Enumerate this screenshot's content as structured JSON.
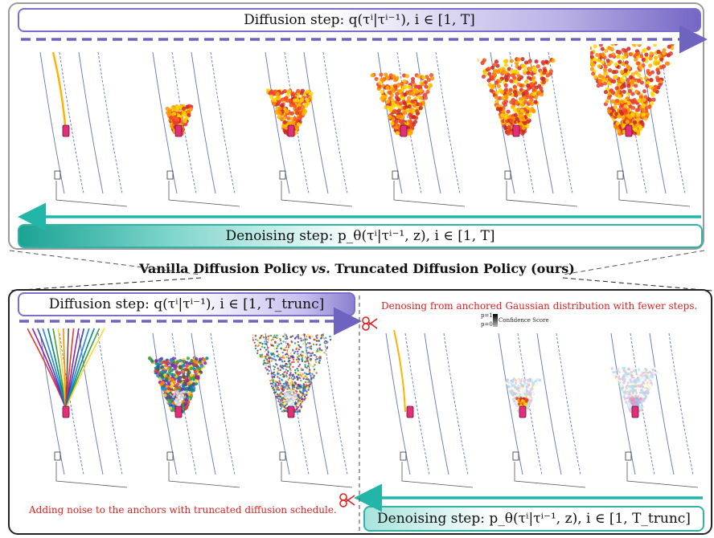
{
  "top": {
    "diffusion_label": "Diffusion step: q(τⁱ|τⁱ⁻¹), i ∈ [1, T]",
    "denoising_label": "Denoising step: p_θ(τⁱ|τⁱ⁻¹, z), i ∈ [1, T]"
  },
  "title": {
    "part1": "Vanilla Diffusion Policy ",
    "vs": "vs.",
    "part2": " Truncated Diffusion Policy (ours)"
  },
  "bottom": {
    "diffusion_label": "Diffusion step: q(τⁱ|τⁱ⁻¹), i ∈ [1, T_trunc]",
    "denoising_label": "Denoising step: p_θ(τⁱ|τⁱ⁻¹, z), i ∈ [1, T_trunc]",
    "note_right": "Denosing from anchored Gaussian distribution with fewer steps.",
    "note_left": "Adding noise to the anchors with truncated diffusion schedule.",
    "confidence_p1": "p=1",
    "confidence_p0": "p=0",
    "confidence_label": "Confidence Score"
  },
  "colors": {
    "diffusion_accent": "#6f63c0",
    "denoising_accent": "#22b5a8",
    "note_red": "#e02020",
    "car": "#e0307a",
    "lane": "#3b50b0"
  }
}
